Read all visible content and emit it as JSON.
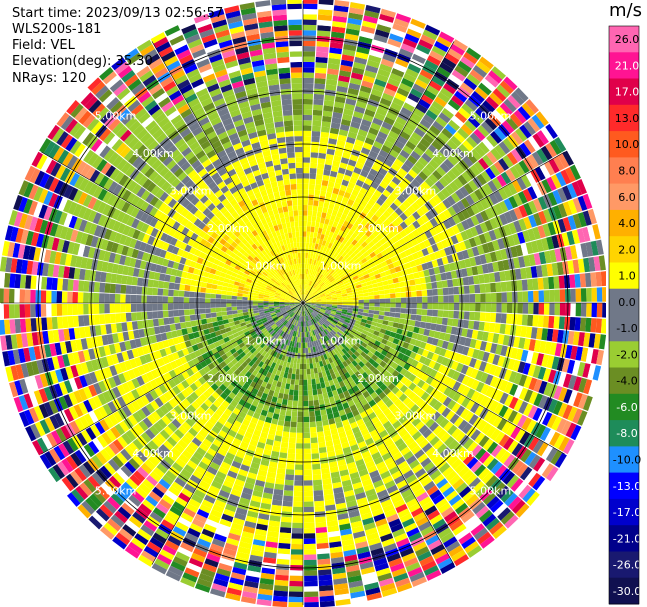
{
  "header": {
    "start_time": "Start time: 2023/09/13 02:56:57",
    "instrument": "WLS200s-181",
    "field": "Field: VEL",
    "elevation": "Elevation(deg): 35.30",
    "nrays": "NRays: 120"
  },
  "colorbar": {
    "unit": "m/s",
    "ticks": [
      "26.0",
      "21.0",
      "17.0",
      "13.0",
      "10.0",
      "8.0",
      "6.0",
      "4.0",
      "2.0",
      "1.0",
      "0.0",
      "-1.0",
      "-2.0",
      "-4.0",
      "-6.0",
      "-8.0",
      "-10.0",
      "-13.0",
      "-17.0",
      "-21.0",
      "-26.0",
      "-30.0"
    ],
    "colors": [
      "#ff66b2",
      "#ff1493",
      "#e0004a",
      "#ff2a2a",
      "#ff5a1f",
      "#ff7f50",
      "#ff9966",
      "#ffb000",
      "#ffd400",
      "#ffff00",
      "#707888",
      "#707888",
      "#9acd32",
      "#6b8e23",
      "#228b22",
      "#1e8c5a",
      "#1e90ff",
      "#0000ff",
      "#0000cd",
      "#00008b",
      "#191970",
      "#101050"
    ]
  },
  "chart_data": {
    "type": "polar-ppi",
    "field": "VEL",
    "unit": "m/s",
    "rays": 120,
    "range_rings_labels": [
      "1.00km",
      "2.00km",
      "3.00km",
      "4.00km",
      "5.00km"
    ],
    "range_rings_km": [
      1,
      2,
      3,
      4,
      5
    ],
    "max_range_km": 5.7,
    "value_range": [
      -30,
      26
    ]
  }
}
